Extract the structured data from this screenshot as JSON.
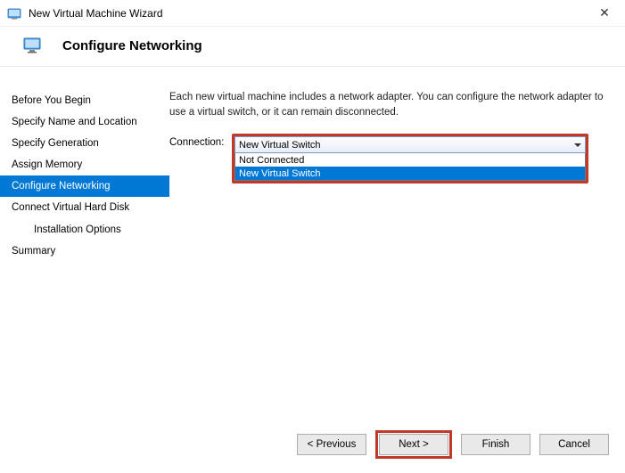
{
  "titlebar": {
    "title": "New Virtual Machine Wizard"
  },
  "header": {
    "title": "Configure Networking"
  },
  "sidebar": {
    "items": [
      {
        "label": "Before You Begin",
        "active": false,
        "indent": false
      },
      {
        "label": "Specify Name and Location",
        "active": false,
        "indent": false
      },
      {
        "label": "Specify Generation",
        "active": false,
        "indent": false
      },
      {
        "label": "Assign Memory",
        "active": false,
        "indent": false
      },
      {
        "label": "Configure Networking",
        "active": true,
        "indent": false
      },
      {
        "label": "Connect Virtual Hard Disk",
        "active": false,
        "indent": false
      },
      {
        "label": "Installation Options",
        "active": false,
        "indent": true
      },
      {
        "label": "Summary",
        "active": false,
        "indent": false
      }
    ]
  },
  "main": {
    "description": "Each new virtual machine includes a network adapter. You can configure the network adapter to use a virtual switch, or it can remain disconnected.",
    "connection_label": "Connection:",
    "dropdown": {
      "selected": "New Virtual Switch",
      "options": [
        {
          "label": "Not Connected",
          "highlighted": false
        },
        {
          "label": "New Virtual Switch",
          "highlighted": true
        }
      ]
    }
  },
  "buttons": {
    "previous": "< Previous",
    "next": "Next >",
    "finish": "Finish",
    "cancel": "Cancel"
  },
  "colors": {
    "accent": "#0078d4",
    "highlight_border": "#c0392b",
    "button_bg": "#e9e9e9",
    "button_border": "#acacac"
  }
}
